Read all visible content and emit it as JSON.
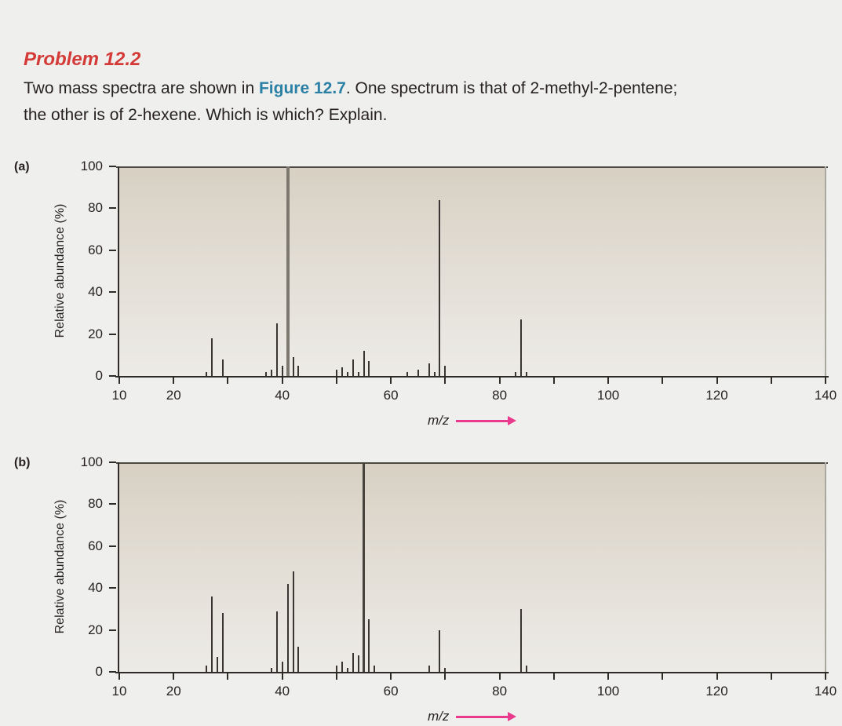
{
  "page": {
    "background_color": "#efefed"
  },
  "problem": {
    "title": "Problem 12.2",
    "text_before_link": "Two mass spectra are shown in ",
    "figure_link": "Figure 12.7",
    "text_after_link": ". One spectrum is that of 2-methyl-2-pentene;",
    "text_line2": "the other is of 2-hexene. Which is which? Explain."
  },
  "style": {
    "title_color": "#d43b38",
    "figure_link_color": "#2b80a5",
    "body_text_color": "#272123",
    "axis_color": "#2e2b28",
    "peak_color": "#3a3531",
    "plot_border_right_color": "#aaa79f",
    "plot_gradient_top": "#d7d0c3",
    "plot_gradient_bottom": "#edebe7",
    "arrow_color": "#e93a8e"
  },
  "chart_data": [
    {
      "id": "a",
      "type": "bar",
      "panel_label": "(a)",
      "ylabel": "Relative abundance (%)",
      "xlabel": "m/z",
      "xlim": [
        10,
        140
      ],
      "ylim": [
        0,
        100
      ],
      "grid": false,
      "y_ticks": [
        0,
        20,
        40,
        60,
        80,
        100
      ],
      "x_ticks": [
        10,
        20,
        30,
        40,
        50,
        60,
        70,
        80,
        90,
        100,
        110,
        120,
        130,
        140
      ],
      "x_tick_labels": [
        10,
        20,
        40,
        60,
        80,
        100,
        120,
        140
      ],
      "base_peak_mz": 41,
      "base_peak_color": "#7d786f",
      "base_peak_width": 4,
      "peaks_mz_intensity": [
        [
          26,
          2
        ],
        [
          27,
          18
        ],
        [
          29,
          8
        ],
        [
          37,
          2
        ],
        [
          38,
          3
        ],
        [
          39,
          25
        ],
        [
          40,
          5
        ],
        [
          41,
          100
        ],
        [
          42,
          9
        ],
        [
          43,
          5
        ],
        [
          50,
          3
        ],
        [
          51,
          4
        ],
        [
          52,
          2
        ],
        [
          53,
          8
        ],
        [
          54,
          2
        ],
        [
          55,
          12
        ],
        [
          56,
          7
        ],
        [
          63,
          2
        ],
        [
          65,
          3
        ],
        [
          67,
          6
        ],
        [
          68,
          2
        ],
        [
          69,
          84
        ],
        [
          70,
          5
        ],
        [
          83,
          2
        ],
        [
          84,
          27
        ],
        [
          85,
          2
        ]
      ]
    },
    {
      "id": "b",
      "type": "bar",
      "panel_label": "(b)",
      "ylabel": "Relative abundance (%)",
      "xlabel": "m/z",
      "xlim": [
        10,
        140
      ],
      "ylim": [
        0,
        100
      ],
      "grid": false,
      "y_ticks": [
        0,
        20,
        40,
        60,
        80,
        100
      ],
      "x_ticks": [
        10,
        20,
        30,
        40,
        50,
        60,
        70,
        80,
        90,
        100,
        110,
        120,
        130,
        140
      ],
      "x_tick_labels": [
        10,
        20,
        40,
        60,
        80,
        100,
        120,
        140
      ],
      "base_peak_mz": 55,
      "base_peak_color": "#46423c",
      "base_peak_width": 3,
      "peaks_mz_intensity": [
        [
          26,
          3
        ],
        [
          27,
          36
        ],
        [
          28,
          7
        ],
        [
          29,
          28
        ],
        [
          38,
          2
        ],
        [
          39,
          29
        ],
        [
          40,
          5
        ],
        [
          41,
          42
        ],
        [
          42,
          48
        ],
        [
          43,
          12
        ],
        [
          50,
          3
        ],
        [
          51,
          5
        ],
        [
          52,
          2
        ],
        [
          53,
          9
        ],
        [
          54,
          8
        ],
        [
          55,
          100
        ],
        [
          56,
          25
        ],
        [
          57,
          3
        ],
        [
          67,
          3
        ],
        [
          69,
          20
        ],
        [
          70,
          2
        ],
        [
          84,
          30
        ],
        [
          85,
          3
        ]
      ]
    }
  ]
}
